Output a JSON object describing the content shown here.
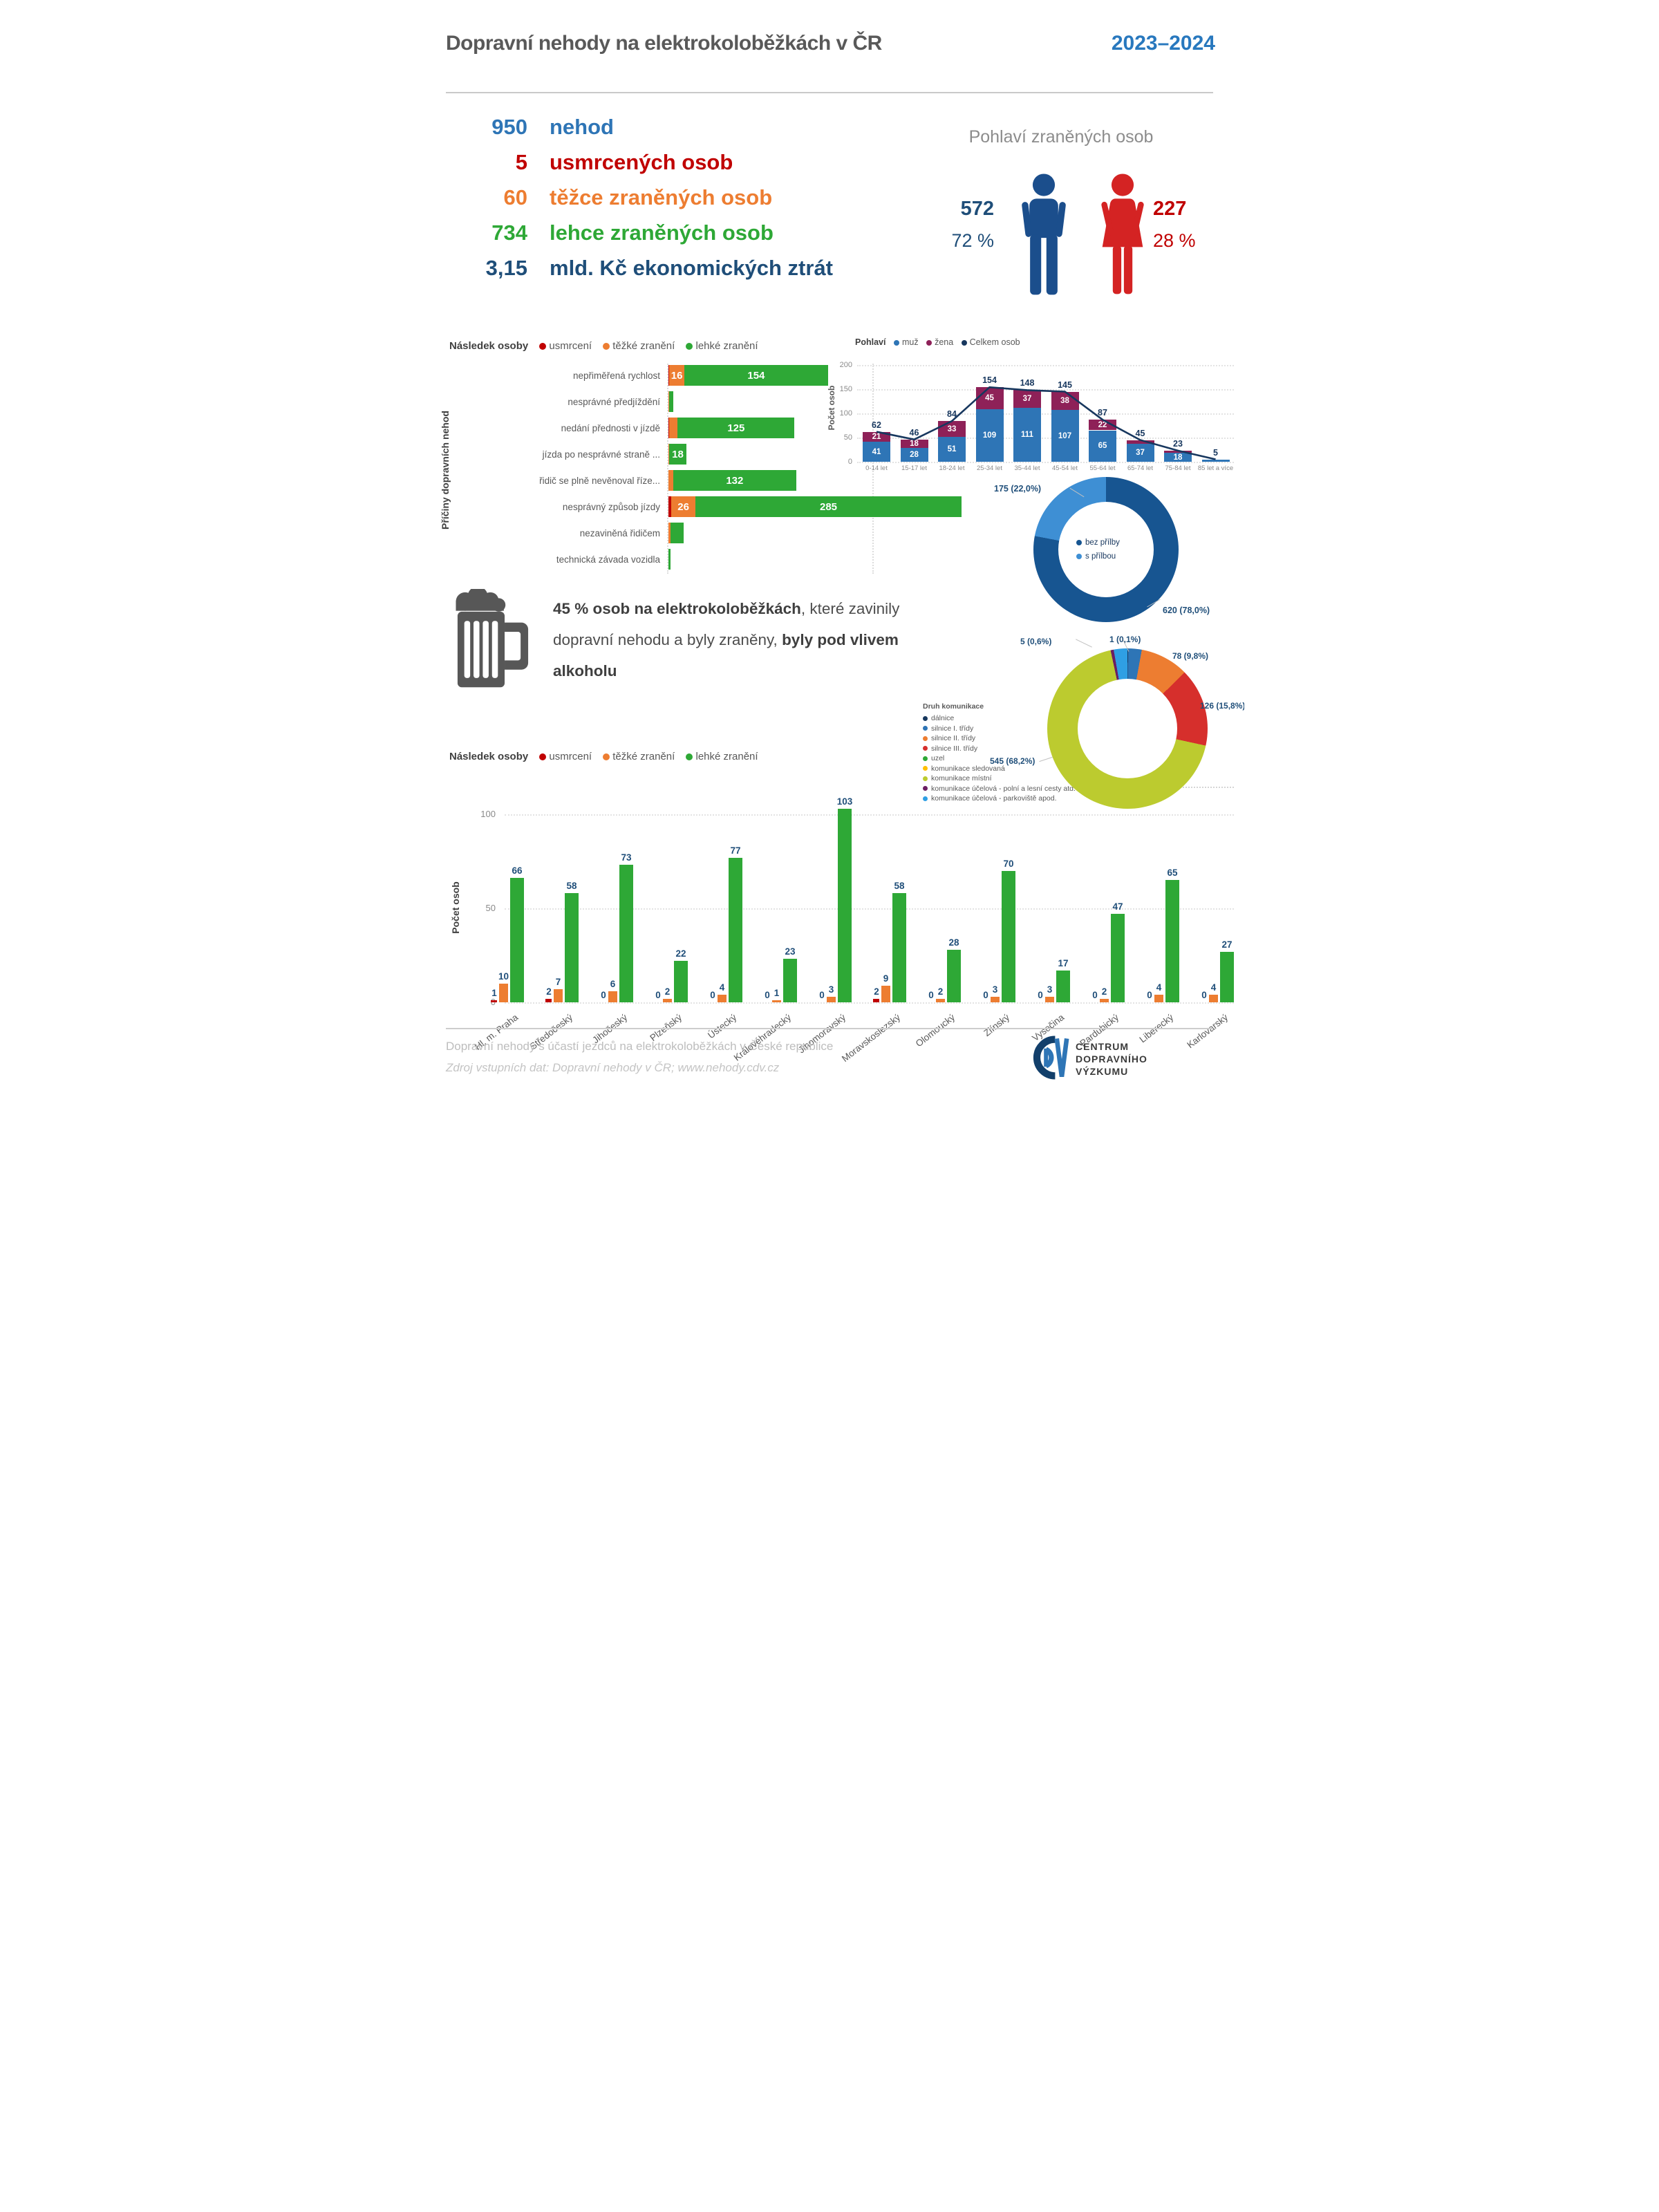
{
  "header": {
    "title": "Dopravní nehody na elektrokoloběžkách v ČR",
    "years": "2023–2024"
  },
  "key_stats": [
    {
      "value": "950",
      "label": "nehod",
      "color": "#2E75B6"
    },
    {
      "value": "5",
      "label": "usmrcených osob",
      "color": "#C00000"
    },
    {
      "value": "60",
      "label": "těžce zraněných osob",
      "color": "#ED7D31"
    },
    {
      "value": "734",
      "label": "lehce zraněných osob",
      "color": "#2EA836"
    },
    {
      "value": "3,15",
      "label": "mld. Kč ekonomických ztrát",
      "color": "#1F4E79"
    }
  ],
  "gender": {
    "title": "Pohlaví zraněných osob",
    "male": {
      "count": "572",
      "percent": "72 %",
      "color": "#1B4E8C"
    },
    "female": {
      "count": "227",
      "percent": "28 %",
      "color": "#D42323"
    }
  },
  "alcohol": {
    "segments": [
      {
        "text": "45 % osob na elektrokoloběžkách",
        "bold": true
      },
      {
        "text": ", které zavinily dopravní nehodu a byly zraněny, ",
        "bold": false
      },
      {
        "text": "byly pod vlivem alkoholu",
        "bold": true
      }
    ]
  },
  "chart_data": [
    {
      "type": "bar",
      "orientation": "horizontal-stacked",
      "legend_title": "Následek osoby",
      "ylabel": "Příčiny dopravních nehod",
      "categories": [
        "nepřiměřená rychlost",
        "nesprávné předjíždění",
        "nedání přednosti v jízdě",
        "jízda po nesprávné straně ...",
        "řidič se plně nevěnoval říze...",
        "nesprávný způsob jízdy",
        "nezaviněná řidičem",
        "technická závada vozidla"
      ],
      "series": [
        {
          "name": "usmrcení",
          "values": [
            1,
            0,
            1,
            0,
            0,
            3,
            0,
            0
          ]
        },
        {
          "name": "těžké zranění",
          "values": [
            16,
            1,
            9,
            1,
            5,
            26,
            2,
            0
          ]
        },
        {
          "name": "lehké zranění",
          "values": [
            154,
            4,
            125,
            18,
            132,
            285,
            14,
            2
          ]
        }
      ],
      "colors": [
        "#C00000",
        "#ED7D31",
        "#2EA836"
      ]
    },
    {
      "type": "bar",
      "orientation": "vertical-stacked-with-line",
      "legend_title": "Pohlaví",
      "ylabel": "Počet osob",
      "ylim": [
        0,
        200
      ],
      "yticks": [
        0,
        50,
        100,
        150,
        200
      ],
      "categories": [
        "0-14 let",
        "15-17 let",
        "18-24 let",
        "25-34 let",
        "35-44 let",
        "45-54 let",
        "55-64 let",
        "65-74 let",
        "75-84 let",
        "85 let a více"
      ],
      "series": [
        {
          "name": "muž",
          "values": [
            41,
            28,
            51,
            109,
            111,
            107,
            65,
            37,
            18,
            5
          ]
        },
        {
          "name": "žena",
          "values": [
            21,
            18,
            33,
            45,
            37,
            38,
            22,
            8,
            5,
            0
          ]
        },
        {
          "name": "Celkem osob",
          "values": [
            62,
            46,
            84,
            154,
            148,
            145,
            87,
            45,
            23,
            5
          ]
        }
      ],
      "colors": [
        "#2E75B6",
        "#8E2158",
        "#17375E"
      ]
    },
    {
      "type": "pie",
      "labels": [
        "bez přílby",
        "s přílbou"
      ],
      "values": [
        620,
        175
      ],
      "value_labels": [
        "620 (78,0%)",
        "175 (22,0%)"
      ],
      "colors": [
        "#175591",
        "#3E8FD4"
      ]
    },
    {
      "type": "pie",
      "title": "Druh komunikace",
      "labels": [
        "dálnice",
        "silnice I. třídy",
        "silnice II. třídy",
        "silnice III. třídy",
        "uzel",
        "komunikace sledovaná",
        "komunikace místní",
        "komunikace účelová - polní a lesní cesty atd.",
        "komunikace účelová - parkoviště apod."
      ],
      "values": [
        1,
        22,
        78,
        126,
        0,
        0,
        545,
        5,
        22
      ],
      "value_labels": [
        "1 (0,1%)",
        "",
        "78 (9,8%)",
        "126 (15,8%)",
        "",
        "",
        "545 (68,2%)",
        "5 (0,6%)",
        ""
      ],
      "colors": [
        "#17375E",
        "#2E75B6",
        "#ED7D31",
        "#D62F2C",
        "#2EA836",
        "#FFC000",
        "#BCCB2F",
        "#6B1E63",
        "#2F9FE4"
      ]
    },
    {
      "type": "bar",
      "orientation": "vertical-grouped",
      "legend_title": "Následek osoby",
      "ylabel": "Počet osob",
      "yticks": [
        0,
        50,
        100
      ],
      "categories": [
        "Hl. m. Praha",
        "Středočeský",
        "Jihočeský",
        "Plzeňský",
        "Ústecký",
        "Královéhradecký",
        "Jihomoravský",
        "Moravskoslezský",
        "Olomoucký",
        "Zlínský",
        "Vysočina",
        "Pardubický",
        "Liberecký",
        "Karlovarský"
      ],
      "series": [
        {
          "name": "usmrcení",
          "values": [
            1,
            2,
            0,
            0,
            0,
            0,
            0,
            2,
            0,
            0,
            0,
            0,
            0,
            0
          ]
        },
        {
          "name": "těžké zranění",
          "values": [
            10,
            7,
            6,
            2,
            4,
            1,
            3,
            9,
            2,
            3,
            3,
            2,
            4,
            4
          ]
        },
        {
          "name": "lehké zranění",
          "values": [
            66,
            58,
            73,
            22,
            77,
            23,
            103,
            58,
            28,
            70,
            17,
            47,
            65,
            27
          ]
        }
      ],
      "colors": [
        "#C00000",
        "#ED7D31",
        "#2EA836"
      ]
    }
  ],
  "footer": {
    "line1": "Dopravní nehody s účastí jezdců na elektrokoloběžkách v České republice",
    "line2": "Zdroj vstupních dat: Dopravní nehody v ČR; www.nehody.cdv.cz",
    "org_lines": [
      "CENTRUM",
      "DOPRAVNÍHO",
      "VÝZKUMU"
    ]
  }
}
